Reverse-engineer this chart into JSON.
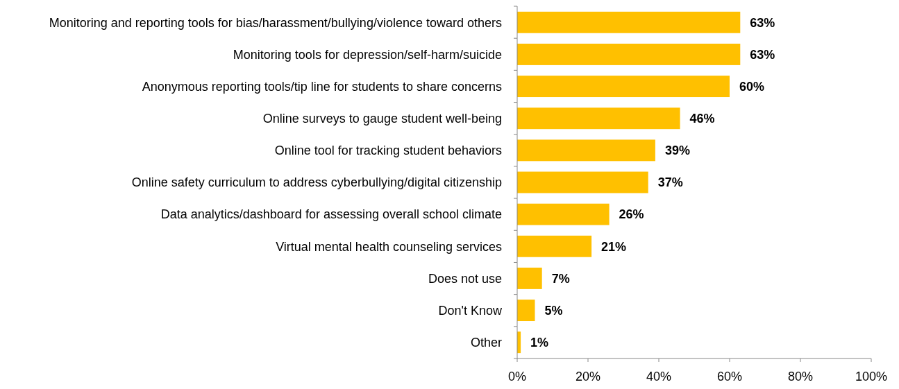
{
  "chart_data": {
    "type": "bar",
    "orientation": "horizontal",
    "categories": [
      "Monitoring and reporting tools for bias/harassment/bullying/violence toward others",
      "Monitoring tools for depression/self-harm/suicide",
      "Anonymous reporting tools/tip line for students to share concerns",
      "Online surveys to gauge student well-being",
      "Online tool for tracking student behaviors",
      "Online safety curriculum to address cyberbullying/digital citizenship",
      "Data analytics/dashboard for assessing overall school climate",
      "Virtual mental health counseling services",
      "Does not use",
      "Don't Know",
      "Other"
    ],
    "values": [
      63,
      63,
      60,
      46,
      39,
      37,
      26,
      21,
      7,
      5,
      1
    ],
    "value_labels": [
      "63%",
      "63%",
      "60%",
      "46%",
      "39%",
      "37%",
      "26%",
      "21%",
      "7%",
      "5%",
      "1%"
    ],
    "color": "#ffc000",
    "xlim": [
      0,
      100
    ],
    "xticks": [
      {
        "value": 0,
        "label": "0%"
      },
      {
        "value": 20,
        "label": "20%"
      },
      {
        "value": 40,
        "label": "40%"
      },
      {
        "value": 60,
        "label": "60%"
      },
      {
        "value": 80,
        "label": "80%"
      },
      {
        "value": 100,
        "label": "100%"
      }
    ],
    "grid": false
  }
}
